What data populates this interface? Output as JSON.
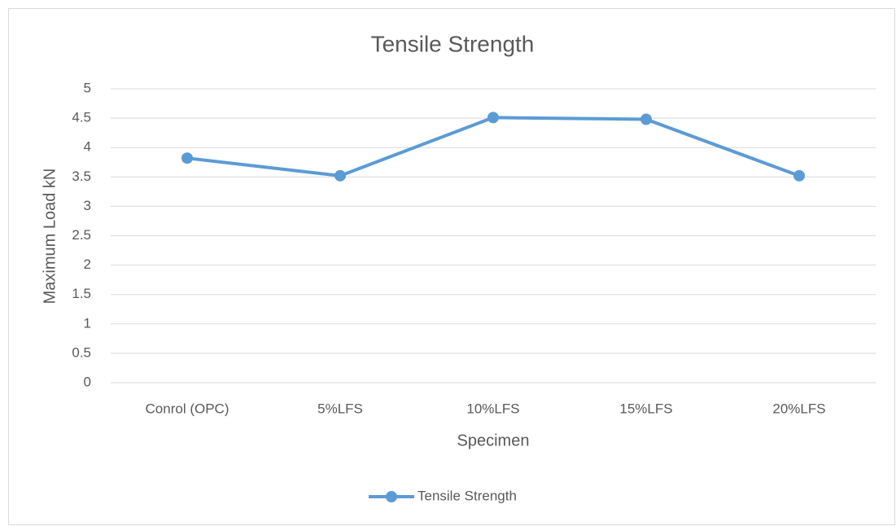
{
  "chart_data": {
    "type": "line",
    "title": "Tensile Strength",
    "x_label": "Specimen",
    "y_label": "Maximum Load kN",
    "categories": [
      "Conrol (OPC)",
      "5%LFS",
      "10%LFS",
      "15%LFS",
      "20%LFS"
    ],
    "series": [
      {
        "name": "Tensile Strength",
        "color": "#5b9bd5",
        "values": [
          3.82,
          3.52,
          4.51,
          4.48,
          3.52
        ]
      }
    ],
    "ylim": [
      0,
      5
    ],
    "yticks": [
      0,
      0.5,
      1,
      1.5,
      2,
      2.5,
      3,
      3.5,
      4,
      4.5,
      5
    ],
    "grid": true,
    "legend": "bottom"
  }
}
